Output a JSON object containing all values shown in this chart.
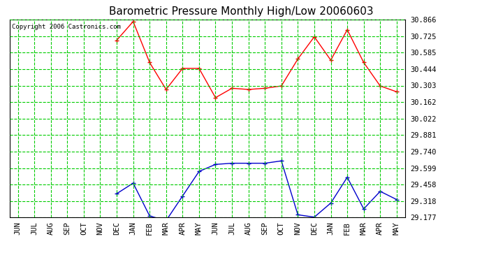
{
  "title": "Barometric Pressure Monthly High/Low 20060603",
  "copyright": "Copyright 2006 Castronics.com",
  "months": [
    "JUN",
    "JUL",
    "AUG",
    "SEP",
    "OCT",
    "NOV",
    "DEC",
    "JAN",
    "FEB",
    "MAR",
    "APR",
    "MAY",
    "JUN",
    "JUL",
    "AUG",
    "SEP",
    "OCT",
    "NOV",
    "DEC",
    "JAN",
    "FEB",
    "MAR",
    "APR",
    "MAY"
  ],
  "high_values": [
    null,
    null,
    null,
    null,
    null,
    null,
    30.69,
    30.85,
    30.5,
    30.27,
    30.45,
    30.45,
    30.2,
    30.28,
    30.27,
    30.28,
    30.3,
    30.53,
    30.72,
    30.52,
    30.78,
    30.5,
    30.3,
    30.25
  ],
  "low_values": [
    null,
    null,
    null,
    null,
    null,
    null,
    29.38,
    29.47,
    29.19,
    29.15,
    29.36,
    29.57,
    29.63,
    29.64,
    29.64,
    29.64,
    29.66,
    29.2,
    29.18,
    29.3,
    29.52,
    29.25,
    29.4,
    29.33
  ],
  "ylim": [
    29.177,
    30.866
  ],
  "yticks": [
    29.177,
    29.318,
    29.458,
    29.599,
    29.74,
    29.881,
    30.022,
    30.162,
    30.303,
    30.444,
    30.585,
    30.725,
    30.866
  ],
  "high_color": "#ff0000",
  "low_color": "#0000cc",
  "grid_major_color": "#00cc00",
  "grid_minor_color": "#aaddaa",
  "bg_color": "#ffffff",
  "title_fontsize": 11,
  "copyright_fontsize": 6.5,
  "tick_fontsize": 7.5
}
